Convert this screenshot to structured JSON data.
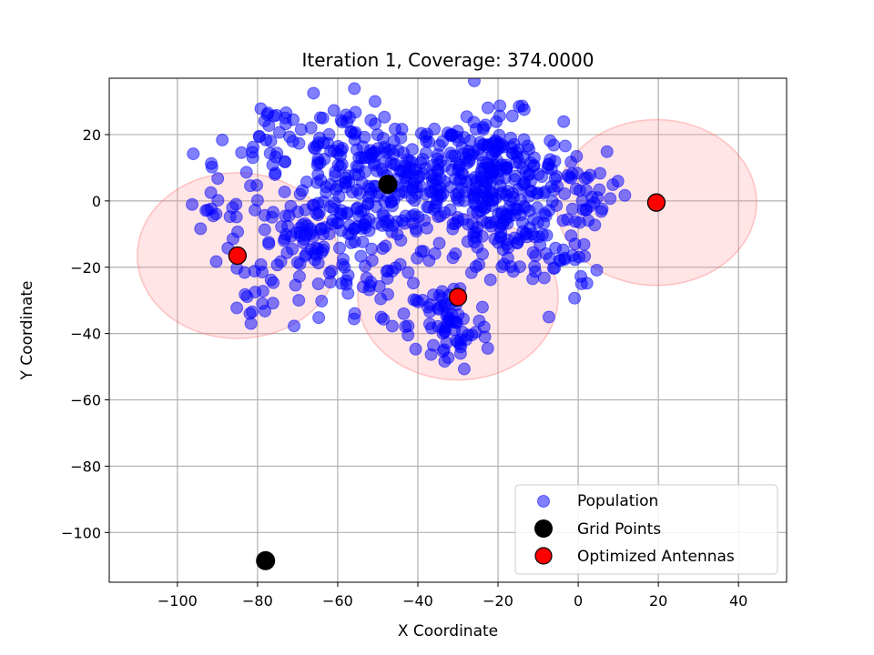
{
  "chart_data": {
    "type": "scatter",
    "title": "Iteration 1, Coverage: 374.0000",
    "xlabel": "X Coordinate",
    "ylabel": "Y Coordinate",
    "xlim": [
      -117,
      52
    ],
    "ylim": [
      -115,
      37
    ],
    "xticks": [
      -100,
      -80,
      -60,
      -40,
      -20,
      0,
      20,
      40
    ],
    "yticks": [
      -100,
      -80,
      -60,
      -40,
      -20,
      0,
      20
    ],
    "xtick_labels": [
      "−100",
      "−80",
      "−60",
      "−40",
      "−20",
      "0",
      "20",
      "40"
    ],
    "ytick_labels": [
      "−100",
      "−80",
      "−60",
      "−40",
      "−20",
      "0",
      "20"
    ],
    "grid": true,
    "legend_position": "bottom-right",
    "coverage_radius": 25,
    "colors": {
      "population": "#0000ff",
      "grid_points": "#000000",
      "antennas": "#ff0000",
      "coverage": "#ff9999"
    },
    "series": [
      {
        "name": "Population",
        "population_clusters": [
          {
            "cx": -45,
            "cy": 5,
            "sx": 9,
            "sy": 10,
            "n": 170
          },
          {
            "cx": -22,
            "cy": 10,
            "sx": 9,
            "sy": 8,
            "n": 200
          },
          {
            "cx": -18,
            "cy": -8,
            "sx": 8,
            "sy": 8,
            "n": 110
          },
          {
            "cx": -60,
            "cy": 10,
            "sx": 7,
            "sy": 10,
            "n": 90
          },
          {
            "cx": -32,
            "cy": -38,
            "sx": 5,
            "sy": 7,
            "n": 70
          },
          {
            "cx": -68,
            "cy": -10,
            "sx": 9,
            "sy": 7,
            "n": 80
          },
          {
            "cx": -77,
            "cy": 20,
            "sx": 4,
            "sy": 6,
            "n": 28
          },
          {
            "cx": -92,
            "cy": 2,
            "sx": 5,
            "sy": 7,
            "n": 20
          },
          {
            "cx": -55,
            "cy": -25,
            "sx": 8,
            "sy": 7,
            "n": 45
          },
          {
            "cx": -5,
            "cy": -15,
            "sx": 5,
            "sy": 9,
            "n": 35
          },
          {
            "cx": 3,
            "cy": 2,
            "sx": 5,
            "sy": 6,
            "n": 30
          },
          {
            "cx": -80,
            "cy": -33,
            "sx": 4,
            "sy": 5,
            "n": 14
          }
        ]
      },
      {
        "name": "Grid Points",
        "points": [
          [
            -47.5,
            5
          ],
          [
            -78,
            -108.5
          ]
        ]
      },
      {
        "name": "Optimized Antennas",
        "points": [
          [
            -85,
            -16.5
          ],
          [
            -30,
            -29
          ],
          [
            19.5,
            -0.5
          ]
        ]
      }
    ]
  }
}
